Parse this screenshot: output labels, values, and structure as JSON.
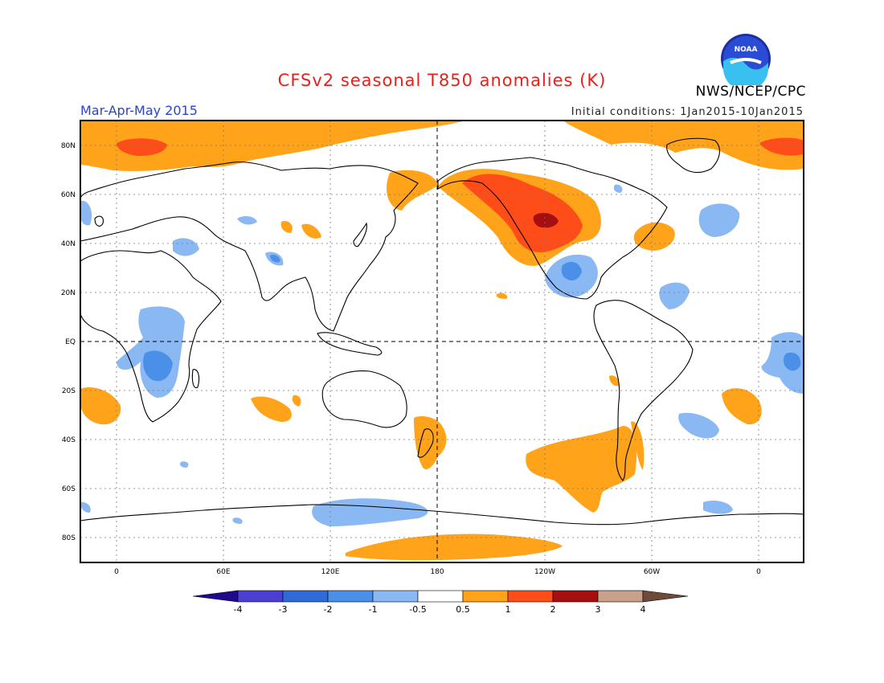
{
  "title": "CFSv2 seasonal T850 anomalies (K)",
  "season": "Mar-Apr-May 2015",
  "initial_conditions": "Initial conditions: 1Jan2015-10Jan2015",
  "agency": "NWS/NCEP/CPC",
  "logo": {
    "text": "NOAA",
    "icon": "noaa-logo-icon"
  },
  "map": {
    "projection": "equirectangular",
    "lon_range": [
      -20,
      360
    ],
    "lat_range": [
      -90,
      90
    ],
    "lat_labels": [
      {
        "lat": 80,
        "text": "80N"
      },
      {
        "lat": 60,
        "text": "60N"
      },
      {
        "lat": 40,
        "text": "40N"
      },
      {
        "lat": 20,
        "text": "20N"
      },
      {
        "lat": 0,
        "text": "EQ"
      },
      {
        "lat": -20,
        "text": "20S"
      },
      {
        "lat": -40,
        "text": "40S"
      },
      {
        "lat": -60,
        "text": "60S"
      },
      {
        "lat": -80,
        "text": "80S"
      }
    ],
    "lon_labels": [
      {
        "lon": 0,
        "text": "0"
      },
      {
        "lon": 60,
        "text": "60E"
      },
      {
        "lon": 120,
        "text": "120E"
      },
      {
        "lon": 180,
        "text": "180"
      },
      {
        "lon": 240,
        "text": "120W"
      },
      {
        "lon": 300,
        "text": "60W"
      },
      {
        "lon": 360,
        "text": "0"
      }
    ]
  },
  "colorbar": {
    "labels": [
      "-4",
      "-3",
      "-2",
      "-1",
      "-0.5",
      "0.5",
      "1",
      "2",
      "3",
      "4"
    ],
    "colors": [
      "#1f0a8c",
      "#4a3fd1",
      "#2f6ad6",
      "#4a90e8",
      "#8ab8f2",
      "#ffffff",
      "#ffa31a",
      "#ff4d1a",
      "#a50f0f",
      "#c9a08a",
      "#6e4a38"
    ]
  },
  "chart_data": {
    "type": "heatmap",
    "variable": "T850 anomaly",
    "units": "K",
    "levels": [
      -4,
      -3,
      -2,
      -1,
      -0.5,
      0.5,
      1,
      2,
      3,
      4
    ],
    "regions": [
      {
        "name": "Arctic warm band",
        "category": "0.5 to 1",
        "lon": [
          -20,
          360
        ],
        "lat": [
          72,
          90
        ]
      },
      {
        "name": "Barents Sea warm core",
        "category": "1 to 2",
        "lon": [
          0,
          30
        ],
        "lat": [
          78,
          84
        ]
      },
      {
        "name": "Western North America warm",
        "category": "1 to 2",
        "lon": [
          200,
          250
        ],
        "lat": [
          35,
          65
        ]
      },
      {
        "name": "Western North America peak",
        "category": "2 to 3",
        "lon": [
          228,
          238
        ],
        "lat": [
          45,
          52
        ]
      },
      {
        "name": "Northwest Atlantic warm",
        "category": "0.5 to 1",
        "lon": [
          290,
          305
        ],
        "lat": [
          35,
          45
        ]
      },
      {
        "name": "Southeast Pacific warm",
        "category": "0.5 to 1",
        "lon": [
          230,
          290
        ],
        "lat": [
          -75,
          -40
        ]
      },
      {
        "name": "Antarctic Ross Sea warm",
        "category": "0.5 to 1",
        "lon": [
          145,
          240
        ],
        "lat": [
          -90,
          -80
        ]
      },
      {
        "name": "New Zealand warm",
        "category": "0.5 to 1",
        "lon": [
          160,
          180
        ],
        "lat": [
          -50,
          -25
        ]
      },
      {
        "name": "South Atlantic warm",
        "category": "0.5 to 1",
        "lon": [
          320,
          335
        ],
        "lat": [
          -35,
          -20
        ]
      },
      {
        "name": "Southern Indian Ocean warm",
        "category": "0.5 to 1",
        "lon": [
          75,
          95
        ],
        "lat": [
          -32,
          -22
        ]
      },
      {
        "name": "Southeast Atlantic warm",
        "category": "0.5 to 1",
        "lon": [
          -15,
          0
        ],
        "lat": [
          -35,
          -18
        ]
      },
      {
        "name": "Central Africa cool",
        "category": "-1 to -0.5",
        "lon": [
          10,
          40
        ],
        "lat": [
          -25,
          15
        ]
      },
      {
        "name": "Mexico cool",
        "category": "-1 to -0.5",
        "lon": [
          245,
          275
        ],
        "lat": [
          15,
          35
        ]
      },
      {
        "name": "North Atlantic cool",
        "category": "-1 to -0.5",
        "lon": [
          320,
          335
        ],
        "lat": [
          35,
          50
        ]
      },
      {
        "name": "Tropical Atlantic cool",
        "category": "-1 to -0.5",
        "lon": [
          315,
          330
        ],
        "lat": [
          10,
          25
        ]
      },
      {
        "name": "South Atlantic cool",
        "category": "-1 to -0.5",
        "lon": [
          310,
          330
        ],
        "lat": [
          -45,
          -35
        ]
      },
      {
        "name": "Southern Ocean cool",
        "category": "-1 to -0.5",
        "lon": [
          90,
          175
        ],
        "lat": [
          -75,
          -65
        ]
      },
      {
        "name": "Indian Ocean cool",
        "category": "-1 to -0.5",
        "lon": [
          355,
          360
        ],
        "lat": [
          -20,
          5
        ]
      }
    ]
  }
}
